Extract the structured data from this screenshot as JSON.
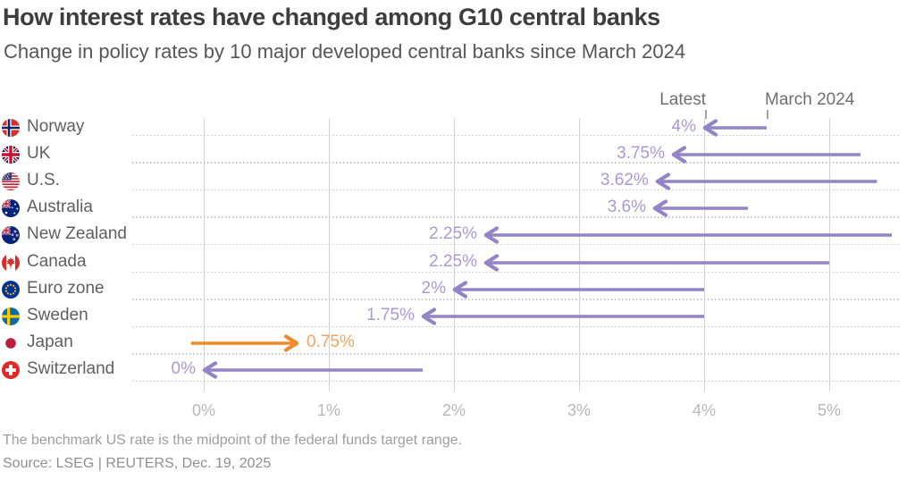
{
  "chart_data": {
    "type": "arrow",
    "title": "How interest rates have changed among G10 central banks",
    "subtitle": "Change in policy rates by 10 major developed central banks since March 2024",
    "column_annotations": {
      "latest": "Latest",
      "march": "March 2024"
    },
    "x_axis": {
      "tick_labels": [
        "0%",
        "1%",
        "2%",
        "3%",
        "4%",
        "5%"
      ],
      "tick_values": [
        0,
        1,
        2,
        3,
        4,
        5
      ],
      "range": [
        -0.57,
        5.57
      ],
      "unit": "percent",
      "grid": "vertical solid lines at each tick, dotted horizontal row separators"
    },
    "rows": [
      {
        "country": "Norway",
        "flag": "norway",
        "latest": 4,
        "latest_label": "4%",
        "march_2024": 4.5,
        "direction": "cut"
      },
      {
        "country": "UK",
        "flag": "uk",
        "latest": 3.75,
        "latest_label": "3.75%",
        "march_2024": 5.25,
        "direction": "cut"
      },
      {
        "country": "U.S.",
        "flag": "us",
        "latest": 3.62,
        "latest_label": "3.62%",
        "march_2024": 5.38,
        "direction": "cut"
      },
      {
        "country": "Australia",
        "flag": "australia",
        "latest": 3.6,
        "latest_label": "3.6%",
        "march_2024": 4.35,
        "direction": "cut"
      },
      {
        "country": "New Zealand",
        "flag": "new-zealand",
        "latest": 2.25,
        "latest_label": "2.25%",
        "march_2024": 5.5,
        "direction": "cut"
      },
      {
        "country": "Canada",
        "flag": "canada",
        "latest": 2.25,
        "latest_label": "2.25%",
        "march_2024": 5.0,
        "direction": "cut"
      },
      {
        "country": "Euro zone",
        "flag": "euro-zone",
        "latest": 2,
        "latest_label": "2%",
        "march_2024": 4.0,
        "direction": "cut"
      },
      {
        "country": "Sweden",
        "flag": "sweden",
        "latest": 1.75,
        "latest_label": "1.75%",
        "march_2024": 4.0,
        "direction": "cut"
      },
      {
        "country": "Japan",
        "flag": "japan",
        "latest": 0.75,
        "latest_label": "0.75%",
        "march_2024": -0.1,
        "direction": "hike"
      },
      {
        "country": "Switzerland",
        "flag": "switzerland",
        "latest": 0,
        "latest_label": "0%",
        "march_2024": 1.75,
        "direction": "cut"
      }
    ],
    "colors": {
      "cut_arrow": "#9184c7",
      "cut_label": "#a79ad5",
      "hike_arrow": "#f1882a",
      "hike_label": "#f4a45c"
    }
  },
  "footnote": "The benchmark US rate is the midpoint of the federal funds target range.",
  "source": "Source: LSEG | REUTERS, Dec. 19, 2025"
}
